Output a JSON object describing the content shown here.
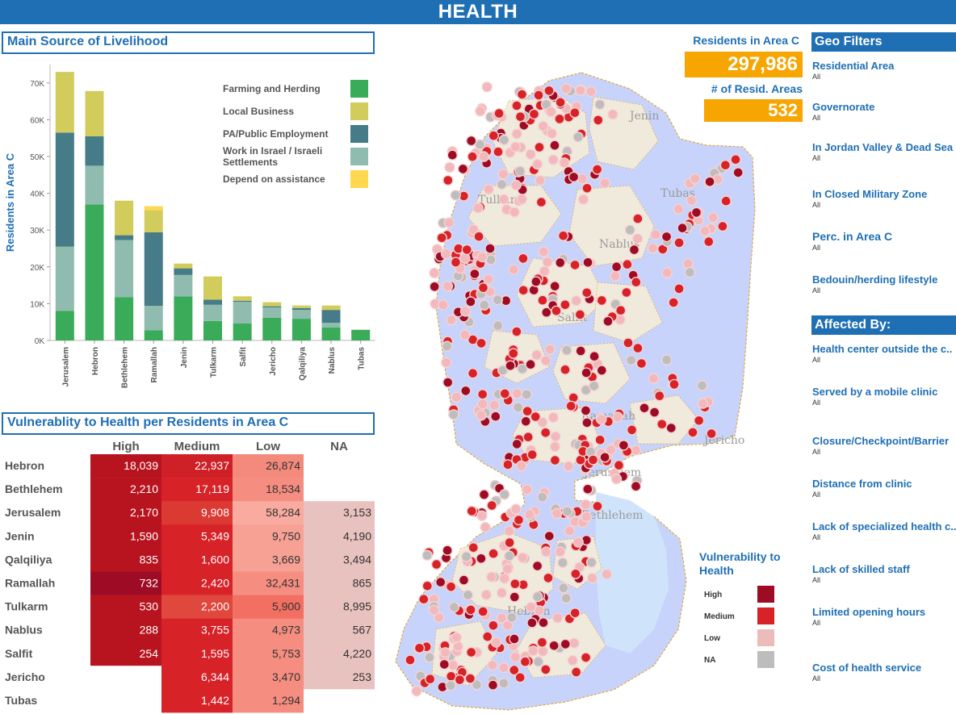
{
  "header": {
    "title": "HEALTH"
  },
  "livelihood": {
    "title": "Main Source of Livelihood"
  },
  "vulnerability": {
    "title": "Vulnerablity to Health  per Residents in Area C"
  },
  "chart_data": {
    "type": "bar",
    "stacked": true,
    "ylabel": "Residents in Area C",
    "ylim": [
      0,
      75000
    ],
    "y_ticks": [
      0,
      10000,
      20000,
      30000,
      40000,
      50000,
      60000,
      70000
    ],
    "y_tick_labels": [
      "0K",
      "10K",
      "20K",
      "30K",
      "40K",
      "50K",
      "60K",
      "70K"
    ],
    "legend_position": "top-right",
    "categories": [
      "Jerusalem",
      "Hebron",
      "Bethlehem",
      "Ramallah",
      "Jenin",
      "Tulkarm",
      "Salfit",
      "Jericho",
      "Qalqiliya",
      "Nablus",
      "Tubas"
    ],
    "series": [
      {
        "name": "Farming and Herding",
        "color": "#3aab59",
        "values": [
          8000,
          37000,
          11800,
          2800,
          12000,
          5300,
          4600,
          6200,
          5900,
          3500,
          2900
        ]
      },
      {
        "name": "Work in Israel / Israeli Settlements",
        "color": "#8fbcae",
        "values": [
          17500,
          10500,
          15500,
          6600,
          5800,
          4400,
          5900,
          2800,
          2400,
          1300,
          0
        ]
      },
      {
        "name": "PA/Public Employment",
        "color": "#457c87",
        "values": [
          31000,
          8000,
          1300,
          20000,
          1800,
          1400,
          300,
          300,
          500,
          3500,
          0
        ]
      },
      {
        "name": "Local Business",
        "color": "#d1cc5c",
        "values": [
          16500,
          12300,
          9400,
          6000,
          1300,
          6300,
          1200,
          1100,
          700,
          1200,
          0
        ]
      },
      {
        "name": "Depend on assistance",
        "color": "#ffd84f",
        "values": [
          0,
          0,
          0,
          1100,
          0,
          0,
          0,
          0,
          0,
          0,
          0
        ]
      }
    ],
    "legend_order": [
      "Farming and Herding",
      "Local Business",
      "PA/Public Employment",
      "Work in Israel / Israeli Settlements",
      "Depend on assistance"
    ]
  },
  "table": {
    "columns": [
      "High",
      "Medium",
      "Low",
      "NA"
    ],
    "rows": [
      {
        "region": "Hebron",
        "values": [
          "18,039",
          "22,937",
          "26,874",
          ""
        ]
      },
      {
        "region": "Bethlehem",
        "values": [
          "2,210",
          "17,119",
          "18,534",
          ""
        ]
      },
      {
        "region": "Jerusalem",
        "values": [
          "2,170",
          "9,908",
          "58,284",
          "3,153"
        ]
      },
      {
        "region": "Jenin",
        "values": [
          "1,590",
          "5,349",
          "9,750",
          "4,190"
        ]
      },
      {
        "region": "Qalqiliya",
        "values": [
          "835",
          "1,600",
          "3,669",
          "3,494"
        ]
      },
      {
        "region": "Ramallah",
        "values": [
          "732",
          "2,420",
          "32,431",
          "865"
        ]
      },
      {
        "region": "Tulkarm",
        "values": [
          "530",
          "2,200",
          "5,900",
          "8,995"
        ]
      },
      {
        "region": "Nablus",
        "values": [
          "288",
          "3,755",
          "4,973",
          "567"
        ]
      },
      {
        "region": "Salfit",
        "values": [
          "254",
          "1,595",
          "5,753",
          "4,220"
        ]
      },
      {
        "region": "Jericho",
        "values": [
          "",
          "6,344",
          "3,470",
          "253"
        ]
      },
      {
        "region": "Tubas",
        "values": [
          "",
          "1,442",
          "1,294",
          ""
        ]
      }
    ],
    "cell_colors": [
      [
        "#b8141f",
        "#cf2027",
        "#f38a7c",
        ""
      ],
      [
        "#b8141f",
        "#d72228",
        "#f58d80",
        ""
      ],
      [
        "#b8141f",
        "#db3a33",
        "#f9ab9f",
        "#e8c2bf"
      ],
      [
        "#b8141f",
        "#d72228",
        "#f7a195",
        "#e8c2bf"
      ],
      [
        "#b8141f",
        "#d72228",
        "#f7a195",
        "#e8c2bf"
      ],
      [
        "#9e0b25",
        "#d72228",
        "#f58d80",
        "#e8c2bf"
      ],
      [
        "#b8141f",
        "#e0483e",
        "#f26f61",
        "#e8c2bf"
      ],
      [
        "#b8141f",
        "#d72228",
        "#f58d80",
        "#e8c2bf"
      ],
      [
        "#b8141f",
        "#d72228",
        "#f58d80",
        "#e8c2bf"
      ],
      [
        "",
        "#d72228",
        "#f58d80",
        "#e8c2bf"
      ],
      [
        "",
        "#d72228",
        "#f58d80",
        ""
      ]
    ]
  },
  "kpi": {
    "residents_label": "Residents in Area C",
    "residents_value": "297,986",
    "areas_label": "# of Resid. Areas",
    "areas_value": "532"
  },
  "map": {
    "city_labels": [
      "Jenin",
      "Tulkarm",
      "Tubas",
      "Nablus",
      "Salfit",
      "Ramallah",
      "Jericho",
      "Jerusalem",
      "Bethlehem",
      "Hebron"
    ],
    "colors": {
      "land": "#f3ecdc",
      "area_c": "#c7d3fb",
      "dead_sea": "#cfe4fa",
      "high": "#9e0b25",
      "medium": "#d72228",
      "low": "#f2b8bb",
      "na": "#bdbdbd"
    }
  },
  "legend": {
    "title_line1": "Vulnerability to",
    "title_line2": "Health",
    "items": [
      {
        "label": "High",
        "color": "#9e0b25"
      },
      {
        "label": "Medium",
        "color": "#d72228"
      },
      {
        "label": "Low",
        "color": "#ecbcbb"
      },
      {
        "label": "NA",
        "color": "#bdbdbd"
      }
    ]
  },
  "geo_filters": {
    "title": "Geo Filters",
    "items": [
      {
        "label": "Residential Area",
        "value": "All"
      },
      {
        "label": "Governorate",
        "value": "All"
      },
      {
        "label": "In Jordan Valley & Dead Sea",
        "value": "All"
      },
      {
        "label": "In Closed Military Zone",
        "value": "All"
      },
      {
        "label": "Perc. in Area C",
        "value": "All"
      },
      {
        "label": "Bedouin/herding lifestyle",
        "value": "All"
      }
    ]
  },
  "affected_by": {
    "title": "Affected By:",
    "items": [
      {
        "label": "Health center outside the c..",
        "value": "All"
      },
      {
        "label": "Served by a mobile clinic",
        "value": "All"
      },
      {
        "label": "Closure/Checkpoint/Barrier",
        "value": "All"
      },
      {
        "label": "Distance from clinic",
        "value": "All"
      },
      {
        "label": "Lack of specialized health c...",
        "value": "All"
      },
      {
        "label": "Lack of skilled staff",
        "value": "All"
      },
      {
        "label": "Limited opening hours",
        "value": "All"
      },
      {
        "label": "Cost of health service",
        "value": "All"
      }
    ]
  }
}
